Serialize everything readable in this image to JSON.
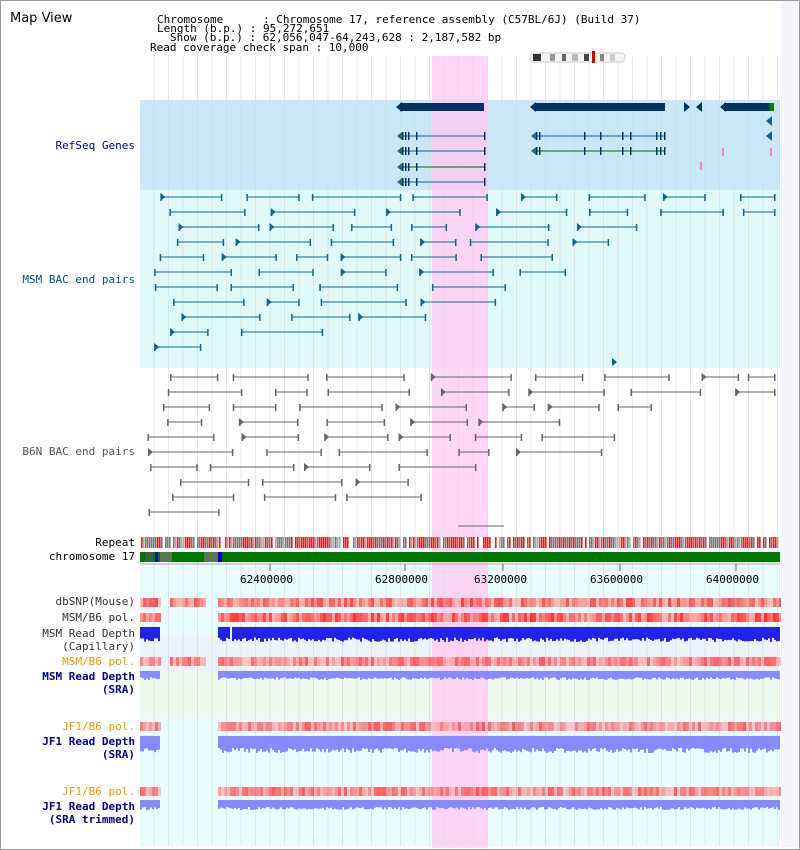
{
  "view_title": "Map View",
  "info": {
    "chromosome": "Chromosome      : Chromosome 17, reference assembly (C57BL/6J) (Build 37)",
    "length": "Length (b.p.) : 95,272,651",
    "show": "Show (b.p.) : 62,056,047-64,243,628 : 2,187,582 bp",
    "coverage": "Read coverage check span : 10,000"
  },
  "tracks": {
    "refseq": "RefSeq Genes",
    "msm_bac": "MSM BAC end pairs",
    "b6n_bac": "B6N BAC end pairs",
    "repeat": "Repeat",
    "chromosome": "chromosome 17",
    "dbsnp": "dbSNP(Mouse)",
    "msm_b6_pol_1": "MSM/B6 pol.",
    "msm_read_depth_cap_1": "MSM Read Depth",
    "msm_read_depth_cap_2": "(Capillary)",
    "msm_b6_pol_2": "MSM/B6 pol.",
    "msm_read_depth_sra_1": "MSM Read Depth",
    "msm_read_depth_sra_2": "(SRA)",
    "jf1_b6_pol_1": "JF1/B6 pol.",
    "jf1_read_depth_sra_1": "JF1 Read Depth",
    "jf1_read_depth_sra_2": "(SRA)",
    "jf1_b6_pol_2": "JF1/B6 pol.",
    "jf1_read_depth_trim_1": "JF1 Read Depth",
    "jf1_read_depth_trim_2": "(SRA trimmed)"
  },
  "axis_ticks": [
    "62400000",
    "62800000",
    "63200000",
    "63600000",
    "64000000"
  ],
  "colors": {
    "highlight": "#ffc8f0",
    "refseq_bg": "#c8e8f8",
    "msm_bg": "#e0fafa",
    "lower_bg": "#e8fcfc",
    "gene": "#003366",
    "msm_pair": "#116688",
    "b6n_pair": "#666666",
    "repeat_red": "#dd2222",
    "chrom_green": "#007700",
    "depth_blue": "#2222ee",
    "depth_light": "#8888ff",
    "pol_orange": "#ee9900",
    "label_blue": "#000099"
  }
}
